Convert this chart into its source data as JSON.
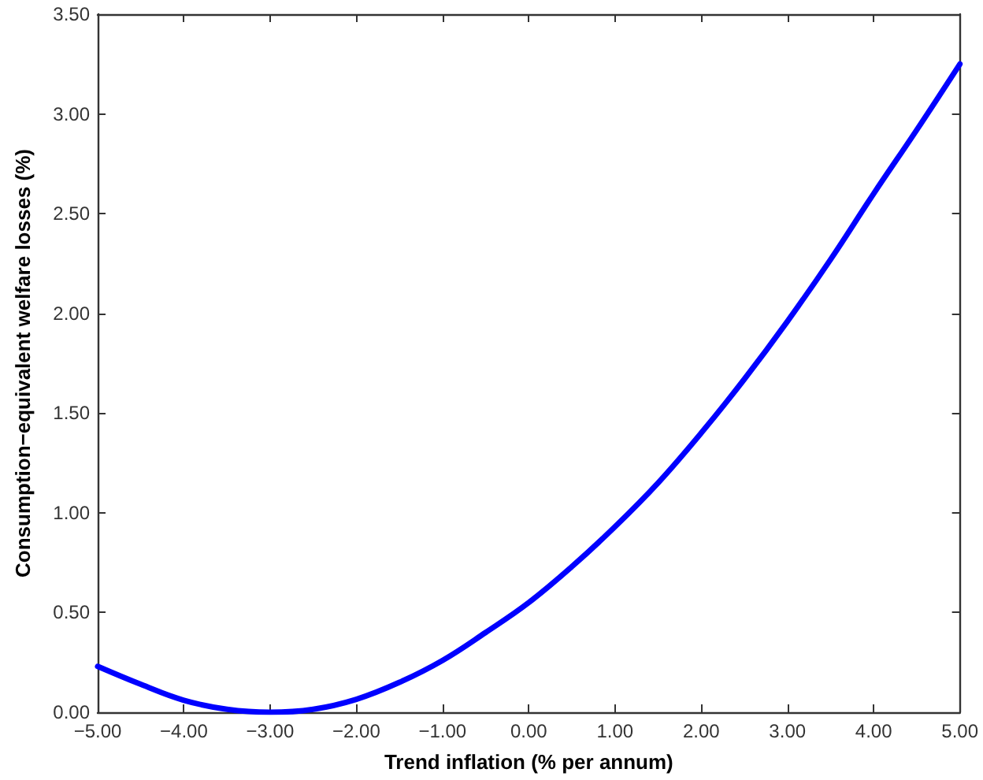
{
  "chart_data": {
    "type": "line",
    "xlabel": "Trend inflation (% per annum)",
    "ylabel": "Consumption−equivalent welfare losses (%)",
    "x": [
      -5,
      -4.5,
      -4,
      -3.5,
      -3,
      -2.5,
      -2,
      -1.5,
      -1,
      -0.5,
      0,
      0.5,
      1,
      1.5,
      2,
      2.5,
      3,
      3.5,
      4,
      4.5,
      5
    ],
    "series": [
      {
        "color": "#0000ff",
        "values": [
          0.23,
          0.14,
          0.06,
          0.015,
          0.0,
          0.015,
          0.065,
          0.15,
          0.26,
          0.4,
          0.55,
          0.73,
          0.93,
          1.15,
          1.4,
          1.67,
          1.96,
          2.27,
          2.6,
          2.92,
          3.25
        ]
      }
    ],
    "xlim": [
      -5,
      5
    ],
    "xticks": [
      {
        "value": -5,
        "label": "−5.00"
      },
      {
        "value": -4,
        "label": "−4.00"
      },
      {
        "value": -3,
        "label": "−3.00"
      },
      {
        "value": -2,
        "label": "−2.00"
      },
      {
        "value": -1,
        "label": "−1.00"
      },
      {
        "value": 0,
        "label": "0.00"
      },
      {
        "value": 1,
        "label": "1.00"
      },
      {
        "value": 2,
        "label": "2.00"
      },
      {
        "value": 3,
        "label": "3.00"
      },
      {
        "value": 4,
        "label": "4.00"
      },
      {
        "value": 5,
        "label": "5.00"
      }
    ],
    "ylim": [
      0,
      3.5
    ],
    "yticks": [
      {
        "value": 0,
        "label": "0.00"
      },
      {
        "value": 0.5,
        "label": "0.50"
      },
      {
        "value": 1,
        "label": "1.00"
      },
      {
        "value": 1.5,
        "label": "1.50"
      },
      {
        "value": 2,
        "label": "2.00"
      },
      {
        "value": 2.5,
        "label": "2.50"
      },
      {
        "value": 3,
        "label": "3.00"
      },
      {
        "value": 3.5,
        "label": "3.50"
      }
    ],
    "line_style": "solid"
  }
}
